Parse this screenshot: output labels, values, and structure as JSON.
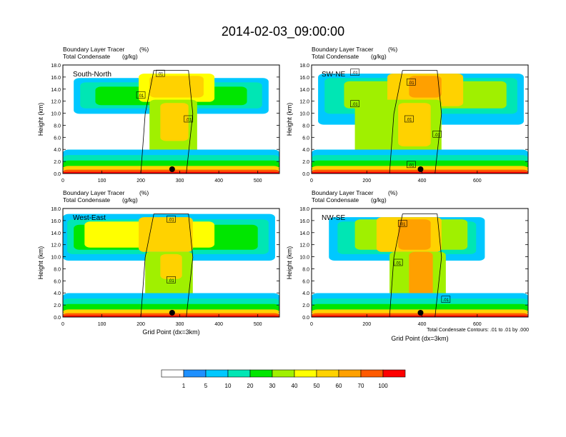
{
  "title": "2014-02-03_09:00:00",
  "colorbar": {
    "colors": [
      "#ffffff",
      "#1e90ff",
      "#00c8ff",
      "#00e6b4",
      "#00e600",
      "#a0f000",
      "#ffff00",
      "#ffd200",
      "#ffa000",
      "#ff5a00",
      "#ff0000"
    ],
    "labels": [
      "1",
      "5",
      "10",
      "20",
      "30",
      "40",
      "50",
      "60",
      "70",
      "100"
    ]
  },
  "footnote": "Total Condensate Contours: .01 to .01 by .000",
  "chart_data": [
    {
      "type": "heatmap",
      "panel_label": "South-North",
      "subtitle_line1": "Boundary Layer Tracer",
      "subtitle_units1": "(%)",
      "subtitle_line2": "Total Condensate",
      "subtitle_units2": "(g/kg)",
      "ylabel": "Height (km)",
      "xlabel": "",
      "ylim": [
        0,
        18
      ],
      "yticks": [
        "0.0",
        "2.0",
        "4.0",
        "6.0",
        "8.0",
        "10.0",
        "12.0",
        "14.0",
        "16.0",
        "18.0"
      ],
      "xlim": [
        0,
        555
      ],
      "xticks": [
        "0",
        "100",
        "200",
        "300",
        "400",
        "500"
      ],
      "contour_labels": [
        ".01",
        ".01",
        ".01"
      ],
      "center_marker_x": 280
    },
    {
      "type": "heatmap",
      "panel_label": "SW-NE",
      "subtitle_line1": "Boundary Layer Tracer",
      "subtitle_units1": "(%)",
      "subtitle_line2": "Total Condensate",
      "subtitle_units2": "(g/kg)",
      "ylabel": "Height (km)",
      "xlabel": "",
      "ylim": [
        0,
        18
      ],
      "yticks": [
        "0.0",
        "2.0",
        "4.0",
        "6.0",
        "8.0",
        "10.0",
        "12.0",
        "14.0",
        "16.0",
        "18.0"
      ],
      "xlim": [
        0,
        785
      ],
      "xticks": [
        "0",
        "200",
        "400",
        "600"
      ],
      "contour_labels": [
        ".01",
        ".01",
        ".01",
        ".01",
        ".01",
        ".01"
      ],
      "center_marker_x": 395
    },
    {
      "type": "heatmap",
      "panel_label": "West-East",
      "subtitle_line1": "Boundary Layer Tracer",
      "subtitle_units1": "(%)",
      "subtitle_line2": "Total Condensate",
      "subtitle_units2": "(g/kg)",
      "ylabel": "Height (km)",
      "xlabel": "Grid Point (dx=3km)",
      "ylim": [
        0,
        18
      ],
      "yticks": [
        "0.0",
        "2.0",
        "4.0",
        "6.0",
        "8.0",
        "10.0",
        "12.0",
        "14.0",
        "16.0",
        "18.0"
      ],
      "xlim": [
        0,
        555
      ],
      "xticks": [
        "0",
        "100",
        "200",
        "300",
        "400",
        "500"
      ],
      "contour_labels": [
        ".01",
        ".01"
      ],
      "center_marker_x": 280
    },
    {
      "type": "heatmap",
      "panel_label": "NW-SE",
      "subtitle_line1": "Boundary Layer Tracer",
      "subtitle_units1": "(%)",
      "subtitle_line2": "Total Condensate",
      "subtitle_units2": "(g/kg)",
      "ylabel": "Height (km)",
      "xlabel": "Grid Point (dx=3km)",
      "ylim": [
        0,
        18
      ],
      "yticks": [
        "0.0",
        "2.0",
        "4.0",
        "6.0",
        "8.0",
        "10.0",
        "12.0",
        "14.0",
        "16.0",
        "18.0"
      ],
      "xlim": [
        0,
        785
      ],
      "xticks": [
        "0",
        "200",
        "400",
        "600"
      ],
      "contour_labels": [
        ".01",
        ".01",
        ".01"
      ],
      "center_marker_x": 395
    }
  ]
}
